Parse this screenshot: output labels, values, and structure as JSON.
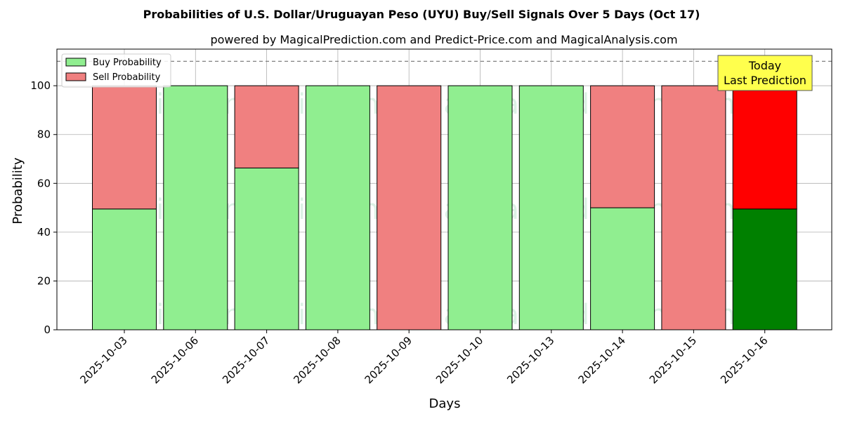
{
  "chart_data": {
    "type": "bar",
    "stacked": true,
    "title": "Probabilities of U.S. Dollar/Uruguayan Peso (UYU) Buy/Sell Signals Over 5 Days (Oct 17)",
    "subtitle": "powered by MagicalPrediction.com and Predict-Price.com and MagicalAnalysis.com",
    "xlabel": "Days",
    "ylabel": "Probability",
    "ylim": [
      0,
      115
    ],
    "yticks": [
      0,
      20,
      40,
      60,
      80,
      100
    ],
    "grid": true,
    "legend_position": "top-left",
    "reference_line": 110,
    "categories": [
      "2025-10-03",
      "2025-10-06",
      "2025-10-07",
      "2025-10-08",
      "2025-10-09",
      "2025-10-10",
      "2025-10-13",
      "2025-10-14",
      "2025-10-15",
      "2025-10-16"
    ],
    "series": [
      {
        "name": "Buy Probability",
        "color": "#90ee90",
        "highlight_color": "#008000",
        "values": [
          49.5,
          100,
          66.3,
          100,
          0,
          100,
          100,
          50,
          0,
          49.5
        ]
      },
      {
        "name": "Sell Probability",
        "color": "#f08080",
        "highlight_color": "#ff0000",
        "values": [
          50.5,
          0,
          33.7,
          0,
          100,
          0,
          0,
          50,
          100,
          50.5
        ]
      }
    ],
    "highlight_index": 9,
    "annotation": {
      "line1": "Today",
      "line2": "Last Prediction",
      "bg_color": "#ffff4d"
    },
    "watermarks": [
      "MagicalAnalysis.com",
      "MagicalPrediction.com"
    ]
  }
}
